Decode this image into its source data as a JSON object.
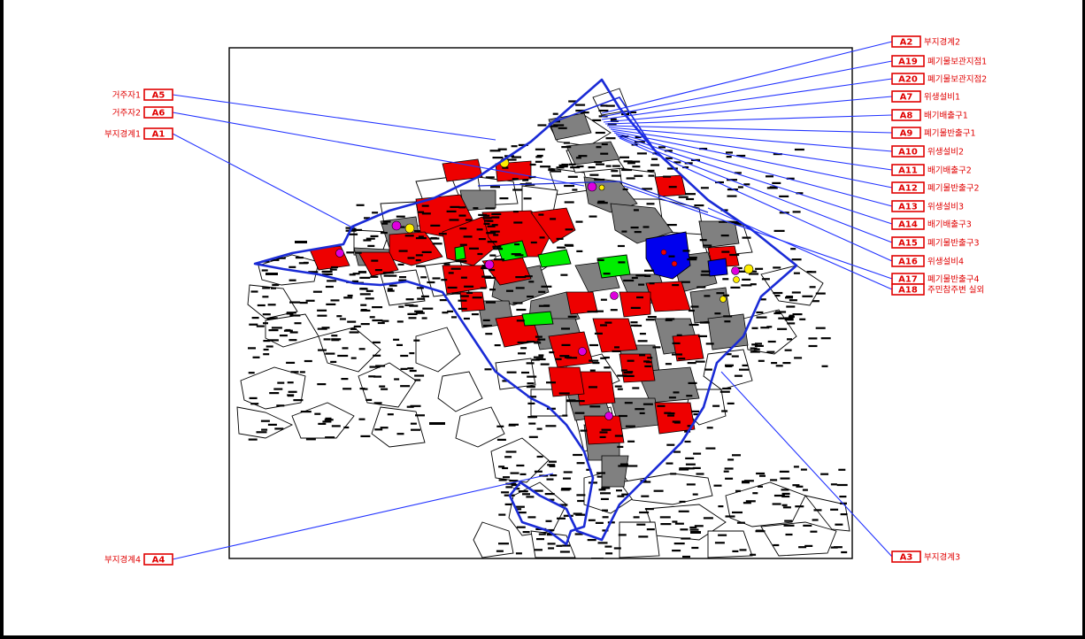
{
  "colors": {
    "label": "#e00000",
    "leader": "#2233ff",
    "boundary": "#1a2bd6",
    "risk_high": "#ee0000",
    "risk_mid": "#808080",
    "risk_low": "#00ee00",
    "risk_blue": "#0000ee",
    "point_magenta": "#dd00dd",
    "point_yellow": "#ffee00"
  },
  "callouts_left": [
    {
      "code": "A5",
      "label": "거주자1"
    },
    {
      "code": "A6",
      "label": "거주자2"
    },
    {
      "code": "A1",
      "label": "부지경계1"
    },
    {
      "code": "A4",
      "label": "부지경계4"
    }
  ],
  "callouts_right": [
    {
      "code": "A2",
      "label": "부지경계2"
    },
    {
      "code": "A19",
      "label": "폐기물보관지점1"
    },
    {
      "code": "A20",
      "label": "폐기물보관지점2"
    },
    {
      "code": "A7",
      "label": "위생설비1"
    },
    {
      "code": "A8",
      "label": "배기배출구1"
    },
    {
      "code": "A9",
      "label": "폐기물반출구1"
    },
    {
      "code": "A10",
      "label": "위생설비2"
    },
    {
      "code": "A11",
      "label": "배기배출구2"
    },
    {
      "code": "A12",
      "label": "폐기물반출구2"
    },
    {
      "code": "A13",
      "label": "위생설비3"
    },
    {
      "code": "A14",
      "label": "배기배출구3"
    },
    {
      "code": "A15",
      "label": "폐기물반출구3"
    },
    {
      "code": "A16",
      "label": "위생설비4"
    },
    {
      "code": "A17",
      "label": "폐기물반출구4"
    },
    {
      "code": "A18",
      "label": "주민참주변 실외"
    },
    {
      "code": "A3",
      "label": "부지경계3"
    }
  ]
}
